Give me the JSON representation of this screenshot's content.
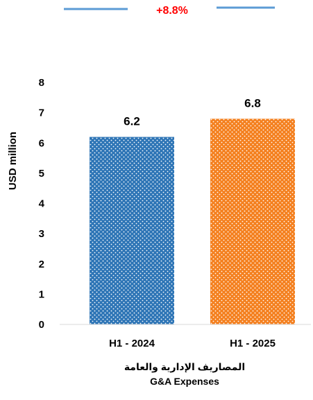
{
  "chart_data": {
    "type": "bar",
    "categories": [
      "H1 - 2024",
      "H1 - 2025"
    ],
    "values": [
      6.2,
      6.8
    ],
    "value_labels": [
      "6.2",
      "6.8"
    ],
    "ylabel": "USD million",
    "xtitle_ar": "المصاريف الإدارية والعامة",
    "xtitle_en": "G&A Expenses",
    "change_label": "+8.8%",
    "ylim": [
      0,
      8
    ],
    "yticks": [
      0,
      1,
      2,
      3,
      4,
      5,
      6,
      7,
      8
    ],
    "grid": false,
    "legend": "none",
    "bar_colors": [
      "#2e75b6",
      "#f4801f"
    ],
    "change_color": "#ff0000",
    "indicator_line_color": "#5b9bd5"
  }
}
